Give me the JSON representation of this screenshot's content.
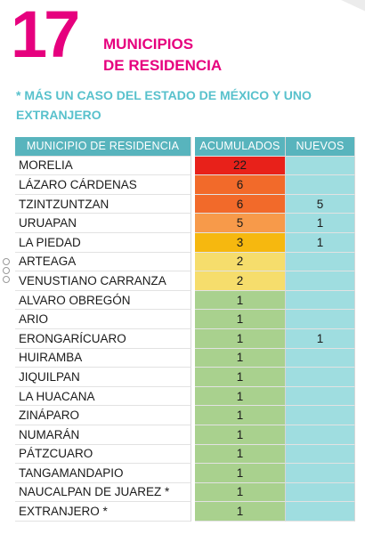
{
  "header": {
    "number": "17",
    "title_line1": "MUNICIPIOS",
    "title_line2": "DE RESIDENCIA",
    "subtitle": "* MÁS UN CASO DEL ESTADO DE MÉXICO Y UNO EXTRANJERO"
  },
  "table": {
    "headers": [
      "MUNICIPIO DE RESIDENCIA",
      "ACUMULADOS",
      "NUEVOS"
    ],
    "rows": [
      {
        "municipio": "MORELIA",
        "acumulados": "22",
        "nuevos": "",
        "color": "#e8211a"
      },
      {
        "municipio": "LÁZARO CÁRDENAS",
        "acumulados": "6",
        "nuevos": "",
        "color": "#f26a2a"
      },
      {
        "municipio": "TZINTZUNTZAN",
        "acumulados": "6",
        "nuevos": "5",
        "color": "#f26a2a"
      },
      {
        "municipio": "URUAPAN",
        "acumulados": "5",
        "nuevos": "1",
        "color": "#f79a4a"
      },
      {
        "municipio": "LA PIEDAD",
        "acumulados": "3",
        "nuevos": "1",
        "color": "#f6b80f"
      },
      {
        "municipio": "ARTEAGA",
        "acumulados": "2",
        "nuevos": "",
        "color": "#f6dd6c"
      },
      {
        "municipio": "VENUSTIANO CARRANZA",
        "acumulados": "2",
        "nuevos": "",
        "color": "#f6dd6c"
      },
      {
        "municipio": "ALVARO OBREGÓN",
        "acumulados": "1",
        "nuevos": "",
        "color": "#a9d18e"
      },
      {
        "municipio": "ARIO",
        "acumulados": "1",
        "nuevos": "",
        "color": "#a9d18e"
      },
      {
        "municipio": "ERONGARÍCUARO",
        "acumulados": "1",
        "nuevos": "1",
        "color": "#a9d18e"
      },
      {
        "municipio": "HUIRAMBA",
        "acumulados": "1",
        "nuevos": "",
        "color": "#a9d18e"
      },
      {
        "municipio": "JIQUILPAN",
        "acumulados": "1",
        "nuevos": "",
        "color": "#a9d18e"
      },
      {
        "municipio": "LA HUACANA",
        "acumulados": "1",
        "nuevos": "",
        "color": "#a9d18e"
      },
      {
        "municipio": "ZINÁPARO",
        "acumulados": "1",
        "nuevos": "",
        "color": "#a9d18e"
      },
      {
        "municipio": "NUMARÁN",
        "acumulados": "1",
        "nuevos": "",
        "color": "#a9d18e"
      },
      {
        "municipio": "PÁTZCUARO",
        "acumulados": "1",
        "nuevos": "",
        "color": "#a9d18e"
      },
      {
        "municipio": "TANGAMANDAPIO",
        "acumulados": "1",
        "nuevos": "",
        "color": "#a9d18e"
      },
      {
        "municipio": "NAUCALPAN DE JUAREZ *",
        "acumulados": "1",
        "nuevos": "",
        "color": "#a9d18e"
      },
      {
        "municipio": "EXTRANJERO *",
        "acumulados": "1",
        "nuevos": "",
        "color": "#a9d18e"
      }
    ]
  }
}
